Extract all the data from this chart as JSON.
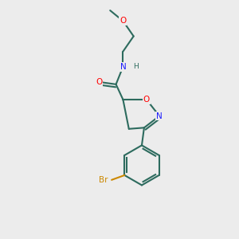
{
  "background_color": "#ececec",
  "bond_color": "#2d6b5e",
  "atom_colors": {
    "O": "#ff0000",
    "N": "#1a1aff",
    "Br": "#cc8800",
    "H": "#2d6b5e"
  },
  "bond_lw": 1.5
}
